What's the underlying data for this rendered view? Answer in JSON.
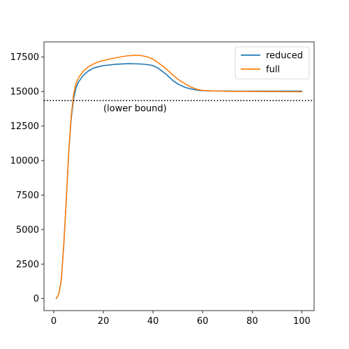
{
  "chart_data": {
    "type": "line",
    "title": "",
    "xlabel": "",
    "ylabel": "",
    "xlim": [
      -3.95,
      104.95
    ],
    "ylim": [
      -875,
      18600
    ],
    "xticks": [
      0,
      20,
      40,
      60,
      80,
      100
    ],
    "yticks": [
      0,
      2500,
      5000,
      7500,
      10000,
      12500,
      15000,
      17500
    ],
    "grid": false,
    "legend_position": "top-right",
    "series": [
      {
        "name": "reduced",
        "color": "#1f77b4",
        "x": [
          1,
          2,
          3,
          4,
          5,
          6,
          7,
          8,
          9,
          10,
          12,
          14,
          16,
          18,
          20,
          25,
          30,
          35,
          38,
          40,
          42,
          45,
          48,
          50,
          53,
          55,
          58,
          60,
          65,
          70,
          75,
          80,
          85,
          90,
          95,
          100
        ],
        "y": [
          0,
          300,
          1300,
          3800,
          7000,
          10500,
          13000,
          14500,
          15300,
          15700,
          16200,
          16500,
          16700,
          16800,
          16880,
          16980,
          17020,
          17000,
          16950,
          16880,
          16700,
          16300,
          15800,
          15550,
          15300,
          15200,
          15100,
          15060,
          15040,
          15035,
          15030,
          15030,
          15030,
          15030,
          15030,
          15030
        ]
      },
      {
        "name": "full",
        "color": "#ff7f0e",
        "x": [
          1,
          2,
          3,
          4,
          5,
          6,
          7,
          8,
          9,
          10,
          12,
          14,
          16,
          18,
          20,
          25,
          30,
          33,
          35,
          38,
          40,
          42,
          45,
          48,
          50,
          53,
          55,
          58,
          60,
          65,
          70,
          75,
          80,
          85,
          90,
          95,
          100
        ],
        "y": [
          0,
          300,
          1300,
          3800,
          7000,
          10500,
          13200,
          14800,
          15600,
          16000,
          16500,
          16800,
          17000,
          17150,
          17250,
          17450,
          17600,
          17630,
          17620,
          17500,
          17350,
          17100,
          16700,
          16200,
          15900,
          15550,
          15350,
          15150,
          15080,
          15040,
          15020,
          15010,
          15005,
          15000,
          15000,
          14990,
          14985
        ]
      }
    ],
    "reference_line": {
      "y": 14350,
      "style": "dotted",
      "color": "#000000"
    },
    "annotations": [
      {
        "text": "(lower bound)",
        "x": 20,
        "y": 13800
      }
    ]
  }
}
